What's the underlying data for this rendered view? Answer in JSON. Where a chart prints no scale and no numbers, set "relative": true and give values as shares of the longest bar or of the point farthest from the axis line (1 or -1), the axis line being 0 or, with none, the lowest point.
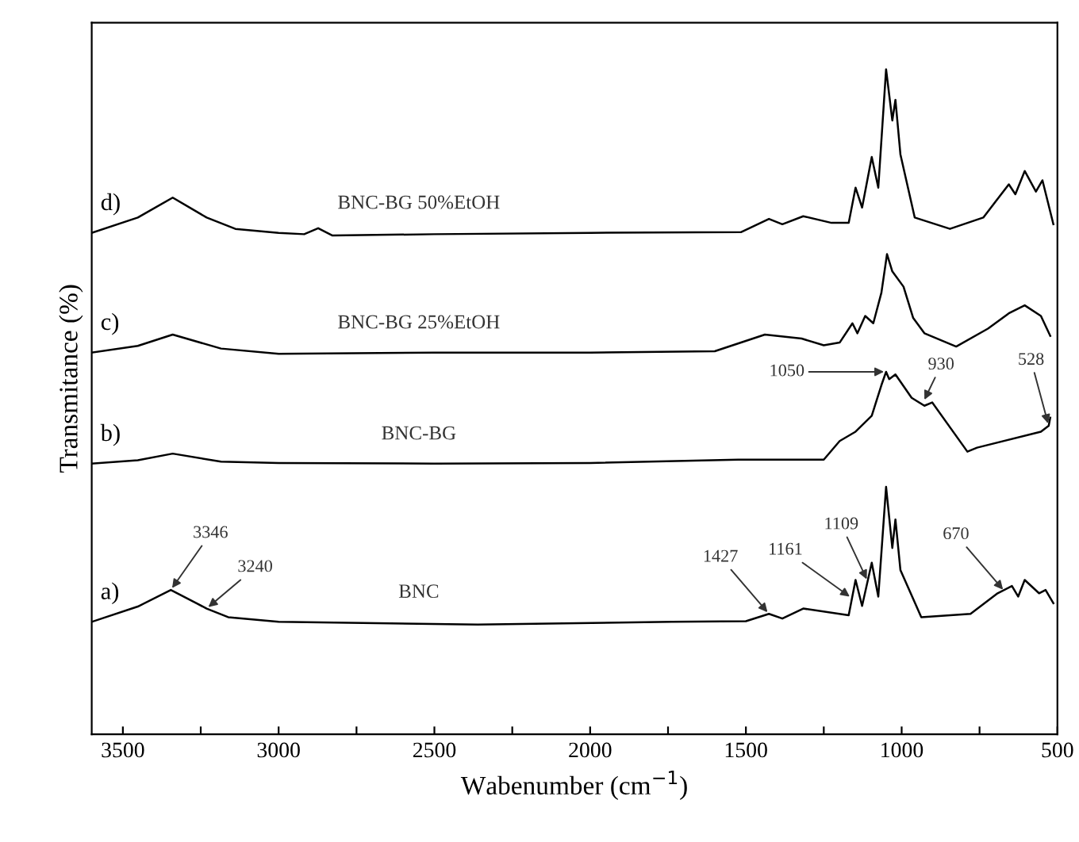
{
  "chart_data": {
    "type": "line",
    "relative": true,
    "xlabel": "Wabenumber (cm$^{−1}$)",
    "ylabel": "Transmitance (%)",
    "xlim": [
      3600,
      500
    ],
    "xticks": [
      3500,
      {
        "value": 3250,
        "label": null
      },
      3000,
      {
        "value": 2750,
        "label": null
      },
      2500,
      {
        "value": 2250,
        "label": null
      },
      2000,
      {
        "value": 1750,
        "label": null
      },
      1500,
      {
        "value": 1250,
        "label": null
      },
      1000,
      {
        "value": 750,
        "label": null
      },
      500
    ],
    "grid": false,
    "legend": false,
    "marker": "none",
    "line_style": "solid",
    "series": [
      {
        "name": "BNC-BG 50%EtOH",
        "color": "#000000",
        "x": [
          3600,
          3452,
          3340,
          3231,
          3139,
          3000,
          2918,
          2873,
          2827,
          2500,
          2000,
          1516,
          1426,
          1383,
          1316,
          1225,
          1170,
          1148,
          1127,
          1096,
          1075,
          1050,
          1030,
          1020,
          1004,
          958,
          845,
          738,
          656,
          635,
          605,
          569,
          548,
          513
        ],
        "values": [
          0.754,
          0.777,
          0.807,
          0.777,
          0.76,
          0.754,
          0.752,
          0.761,
          0.75,
          0.752,
          0.754,
          0.755,
          0.775,
          0.767,
          0.779,
          0.769,
          0.769,
          0.822,
          0.792,
          0.868,
          0.822,
          1.0,
          0.923,
          0.954,
          0.872,
          0.777,
          0.76,
          0.777,
          0.827,
          0.812,
          0.847,
          0.816,
          0.833,
          0.767
        ]
      },
      {
        "name": "BNC-BG 25%EtOH",
        "color": "#000000",
        "x": [
          3600,
          3452,
          3340,
          3185,
          3000,
          2500,
          2000,
          1600,
          1439,
          1321,
          1250,
          1199,
          1158,
          1142,
          1117,
          1091,
          1065,
          1047,
          1030,
          994,
          963,
          927,
          825,
          723,
          656,
          605,
          553,
          523
        ],
        "values": [
          0.574,
          0.584,
          0.601,
          0.58,
          0.572,
          0.574,
          0.574,
          0.576,
          0.601,
          0.595,
          0.585,
          0.589,
          0.618,
          0.603,
          0.629,
          0.618,
          0.664,
          0.722,
          0.696,
          0.673,
          0.626,
          0.603,
          0.583,
          0.61,
          0.633,
          0.645,
          0.629,
          0.599
        ]
      },
      {
        "name": "BNC-BG",
        "color": "#000000",
        "x": [
          3600,
          3452,
          3340,
          3185,
          3000,
          2500,
          2000,
          1525,
          1250,
          1199,
          1148,
          1096,
          1065,
          1050,
          1040,
          1020,
          968,
          927,
          902,
          789,
          758,
          553,
          528,
          523
        ],
        "values": [
          0.407,
          0.412,
          0.422,
          0.41,
          0.408,
          0.407,
          0.408,
          0.413,
          0.413,
          0.441,
          0.455,
          0.479,
          0.525,
          0.545,
          0.534,
          0.541,
          0.506,
          0.494,
          0.499,
          0.425,
          0.431,
          0.455,
          0.464,
          0.476
        ]
      },
      {
        "name": "BNC",
        "color": "#000000",
        "x": [
          3600,
          3452,
          3346,
          3231,
          3162,
          3000,
          2361,
          1738,
          1500,
          1426,
          1383,
          1316,
          1170,
          1148,
          1127,
          1096,
          1075,
          1050,
          1030,
          1020,
          1004,
          937,
          779,
          692,
          646,
          626,
          605,
          559,
          538,
          513
        ],
        "values": [
          0.169,
          0.192,
          0.217,
          0.189,
          0.176,
          0.169,
          0.165,
          0.169,
          0.17,
          0.181,
          0.174,
          0.189,
          0.179,
          0.232,
          0.193,
          0.258,
          0.207,
          0.372,
          0.28,
          0.323,
          0.247,
          0.176,
          0.181,
          0.212,
          0.223,
          0.207,
          0.232,
          0.212,
          0.217,
          0.197
        ]
      }
    ],
    "annotations": [
      {
        "text": "d)",
        "x": 3600,
        "y": 0.754
      },
      {
        "text": "c)",
        "x": 3600,
        "y": 0.574
      },
      {
        "text": "b)",
        "x": 3600,
        "y": 0.407
      },
      {
        "text": "a)",
        "x": 3600,
        "y": 0.169
      },
      {
        "text": "3346",
        "x": 3346,
        "y": 0.217
      },
      {
        "text": "3240",
        "x": 3231,
        "y": 0.189
      },
      {
        "text": "1427",
        "x": 1426,
        "y": 0.181
      },
      {
        "text": "1161",
        "x": 1161,
        "y": 0.205
      },
      {
        "text": "1109",
        "x": 1109,
        "y": 0.23
      },
      {
        "text": "670",
        "x": 670,
        "y": 0.215
      },
      {
        "text": "1050",
        "x": 1050,
        "y": 0.545
      },
      {
        "text": "930",
        "x": 930,
        "y": 0.5
      },
      {
        "text": "528",
        "x": 528,
        "y": 0.464
      }
    ]
  }
}
